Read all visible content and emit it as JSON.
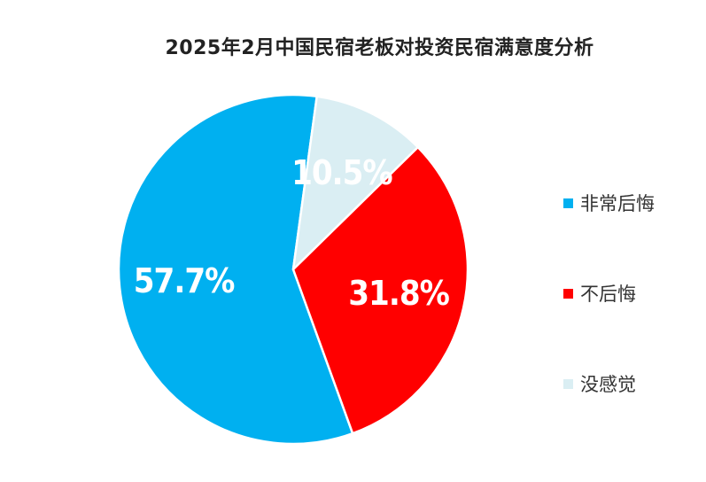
{
  "chart_data": {
    "type": "pie",
    "title": "2025年2月中国民宿老板对投资民宿满意度分析",
    "slices": [
      {
        "name": "非常后悔",
        "value": 57.7,
        "label": "57.7%",
        "color": "#00B0F0"
      },
      {
        "name": "不后悔",
        "value": 31.8,
        "label": "31.8%",
        "color": "#FF0000"
      },
      {
        "name": "没感觉",
        "value": 10.5,
        "label": "10.5%",
        "color": "#DAEEF3"
      }
    ],
    "legend_position": "right"
  }
}
